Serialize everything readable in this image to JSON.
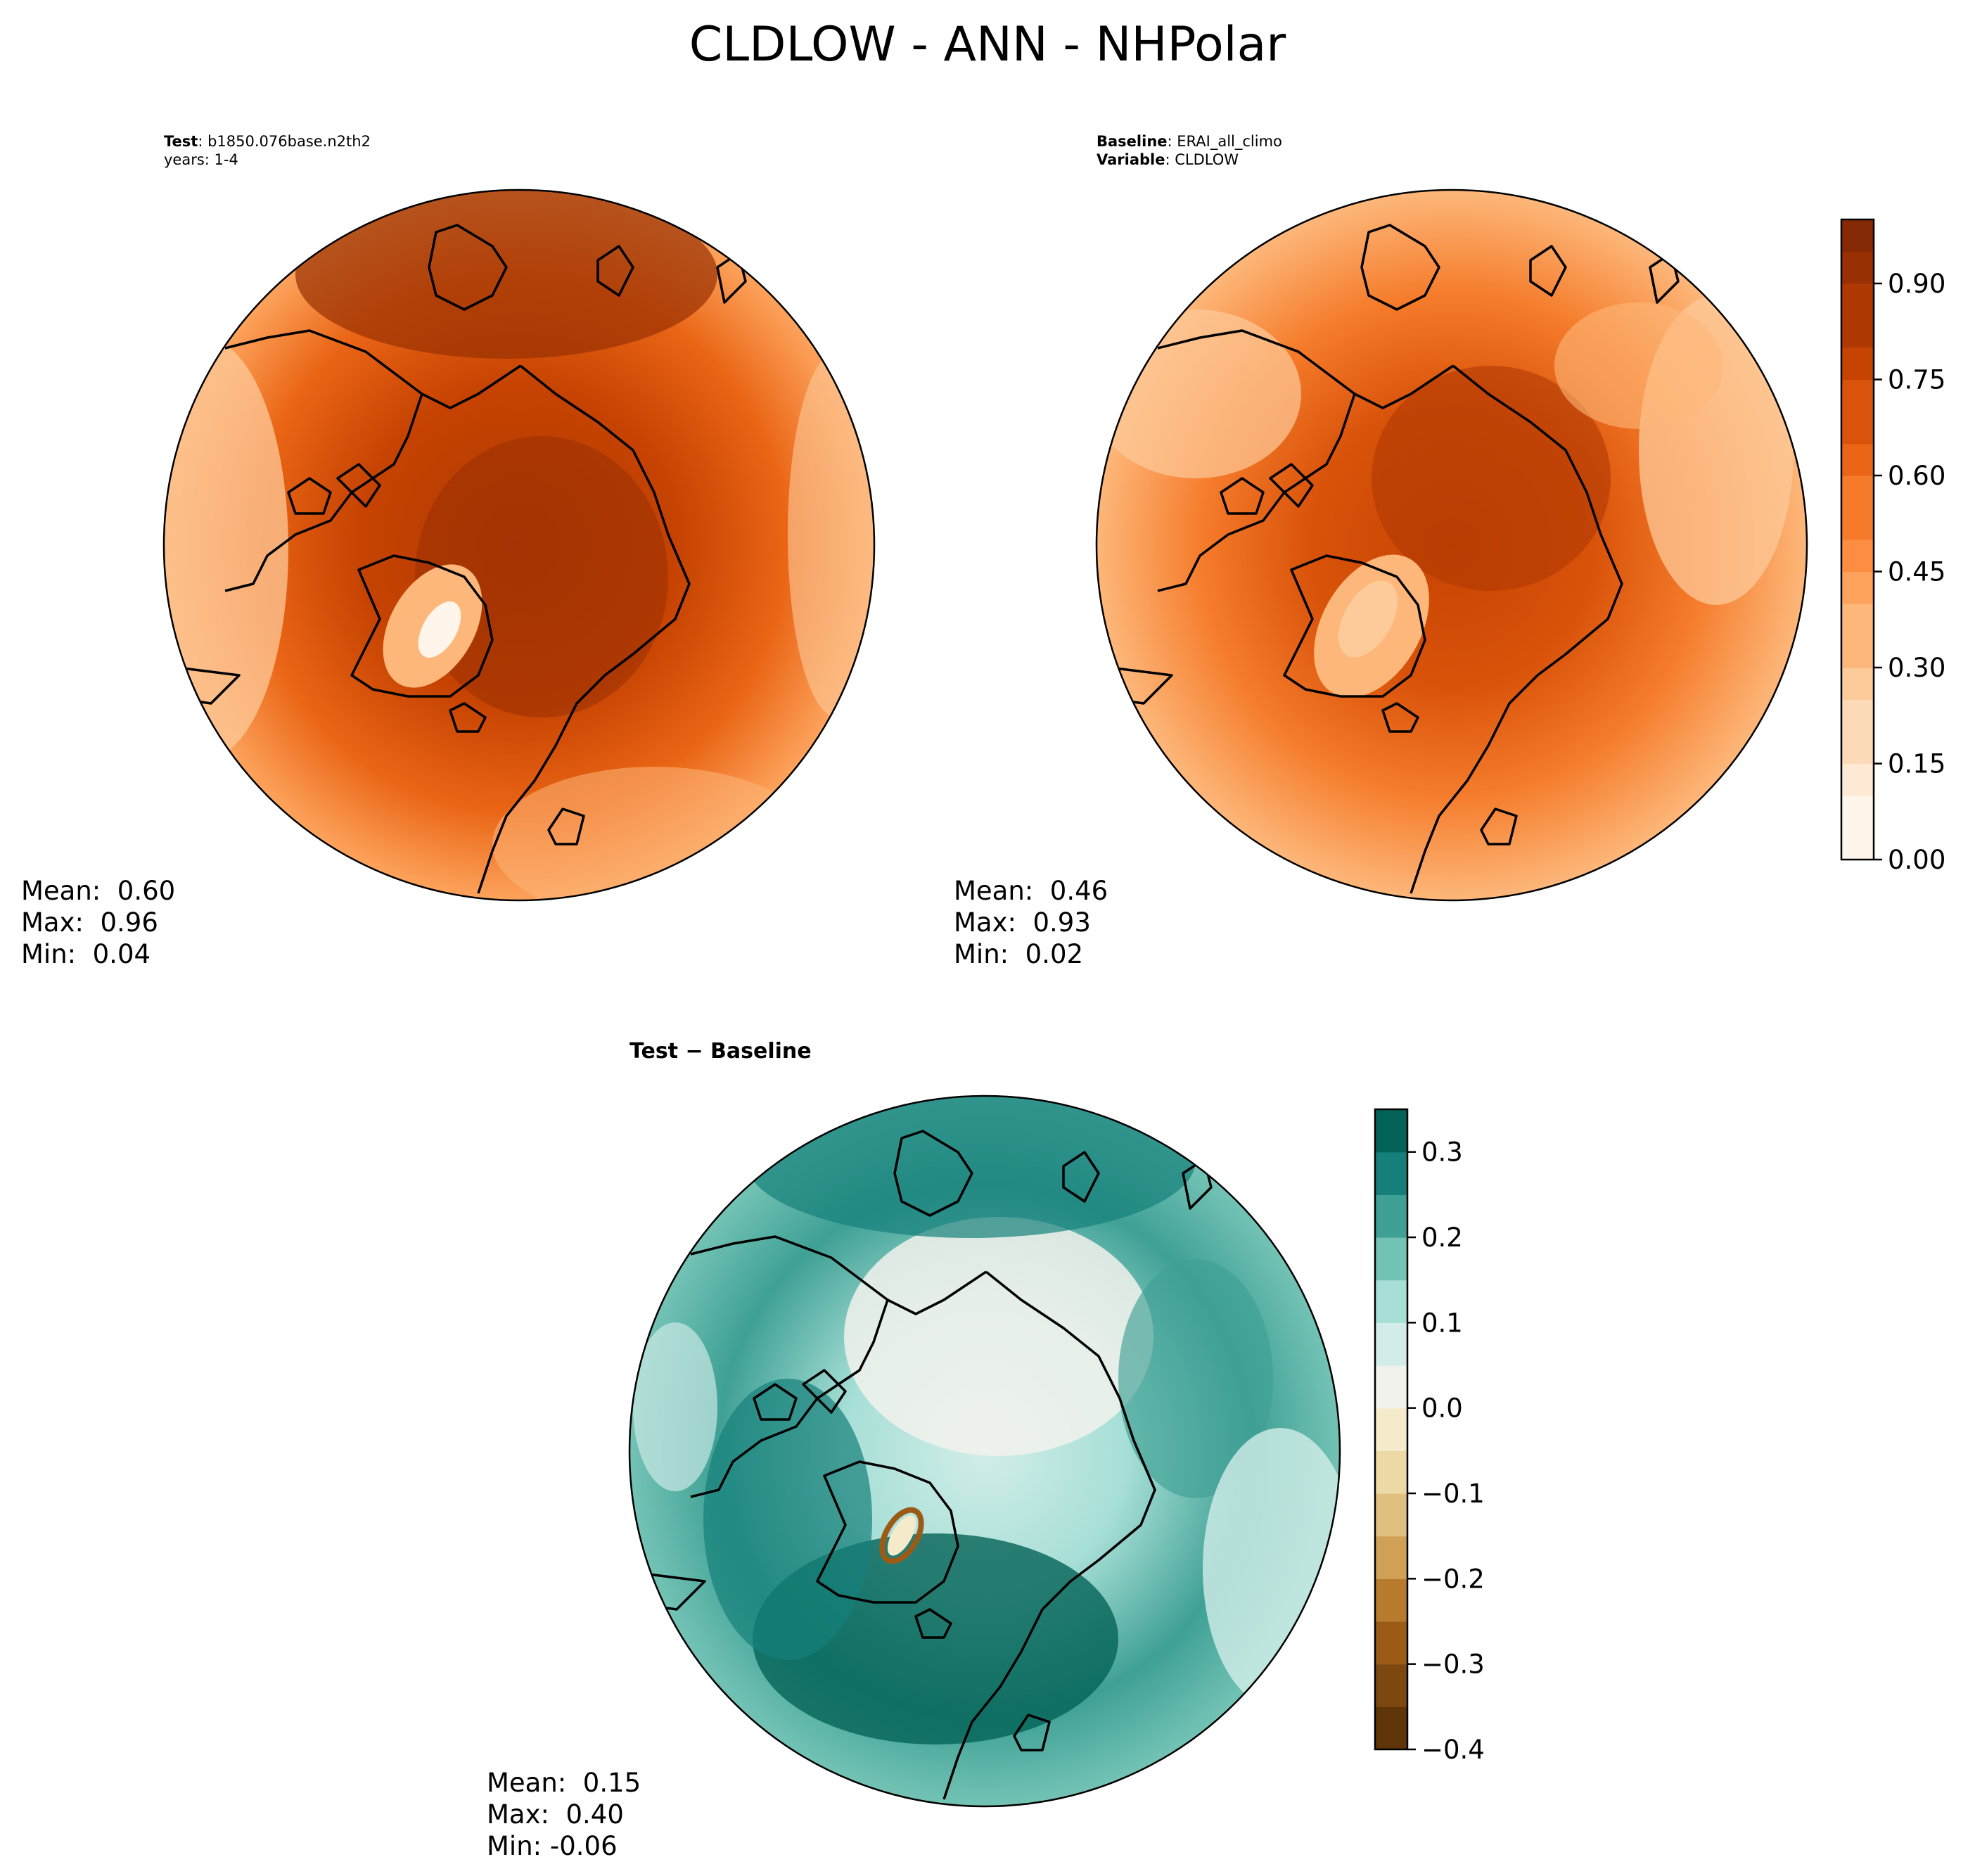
{
  "title": "CLDLOW - ANN - NHPolar",
  "test_panel": {
    "header_key": "Test",
    "header_value": "b1850.076base.n2th2",
    "header_line2": "years: 1-4",
    "stats": {
      "mean": "Mean:  0.60",
      "max": "Max:  0.96",
      "min": "Min:  0.04"
    }
  },
  "baseline_panel": {
    "header_key1": "Baseline",
    "header_value1": "ERAI_all_climo",
    "header_key2": "Variable",
    "header_value2": "CLDLOW",
    "stats": {
      "mean": "Mean:  0.46",
      "max": "Max:  0.93",
      "min": "Min:  0.02"
    }
  },
  "diff_panel": {
    "header": "Test − Baseline",
    "stats": {
      "mean": "Mean:  0.15",
      "max": "Max:  0.40",
      "min": "Min: -0.06"
    }
  },
  "chart_data": [
    {
      "type": "heatmap",
      "projection": "north-polar-stereographic",
      "variable": "CLDLOW",
      "colormap": "Oranges",
      "colorbar": {
        "range": [
          0.0,
          1.0
        ],
        "levels": [
          0.0,
          0.05,
          0.1,
          0.15,
          0.2,
          0.25,
          0.3,
          0.35,
          0.4,
          0.45,
          0.5,
          0.55,
          0.6,
          0.65,
          0.7,
          0.75,
          0.8,
          0.85,
          0.9,
          0.95,
          1.0
        ],
        "ticks": [
          0.0,
          0.15,
          0.3,
          0.45,
          0.6,
          0.75,
          0.9
        ],
        "tick_labels": [
          "0.00",
          "0.15",
          "0.30",
          "0.45",
          "0.60",
          "0.75",
          "0.90"
        ],
        "colors": [
          "#fff5eb",
          "#fee9d4",
          "#fddbb8",
          "#fdca9a",
          "#fdb77a",
          "#fda35c",
          "#fd8e41",
          "#f57b2a",
          "#ea6515",
          "#d9530a",
          "#c64302",
          "#b03903",
          "#993003",
          "#852a04"
        ]
      },
      "panels": [
        {
          "name": "Test",
          "mean": 0.6,
          "max": 0.96,
          "min": 0.04
        },
        {
          "name": "Baseline",
          "mean": 0.46,
          "max": 0.93,
          "min": 0.02
        }
      ]
    },
    {
      "type": "heatmap",
      "projection": "north-polar-stereographic",
      "variable": "CLDLOW difference",
      "colormap": "BrBG",
      "colorbar": {
        "range": [
          -0.4,
          0.35
        ],
        "levels": [
          -0.4,
          -0.35,
          -0.3,
          -0.25,
          -0.2,
          -0.15,
          -0.1,
          -0.05,
          0.0,
          0.05,
          0.1,
          0.15,
          0.2,
          0.25,
          0.3,
          0.35
        ],
        "ticks": [
          -0.4,
          -0.3,
          -0.2,
          -0.1,
          0.0,
          0.1,
          0.2,
          0.3
        ],
        "tick_labels": [
          "−0.4",
          "−0.3",
          "−0.2",
          "−0.1",
          "0.0",
          "0.1",
          "0.2",
          "0.3"
        ],
        "colors": [
          "#5e3408",
          "#7d4710",
          "#9b5b17",
          "#b87b2e",
          "#cfa056",
          "#dfc07e",
          "#ecd9a6",
          "#f5ebcb",
          "#f2f2ec",
          "#d2ede9",
          "#a7dfd6",
          "#73c3b5",
          "#3fa095",
          "#15807a",
          "#046358"
        ]
      },
      "panels": [
        {
          "name": "Test − Baseline",
          "mean": 0.15,
          "max": 0.4,
          "min": -0.06
        }
      ]
    }
  ]
}
